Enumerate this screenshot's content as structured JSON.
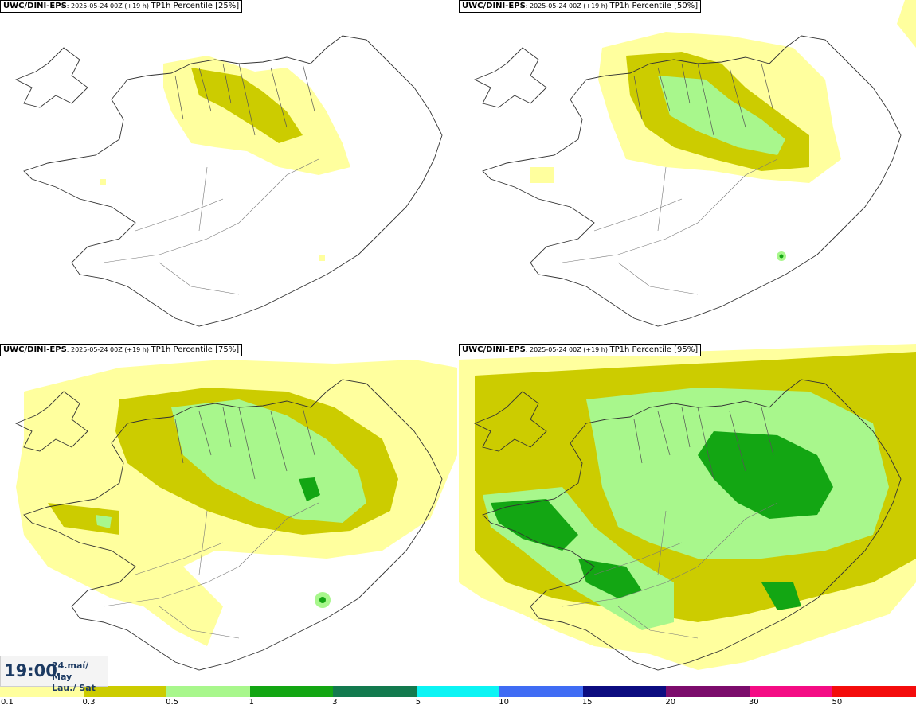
{
  "panels": [
    {
      "model": "UWC/DINI-EPS",
      "run": ": 2025-05-24 00Z (+19 h) ",
      "field": "TP1h Percentile [25%]"
    },
    {
      "model": "UWC/DINI-EPS",
      "run": ": 2025-05-24 00Z (+19 h) ",
      "field": "TP1h Percentile [50%]"
    },
    {
      "model": "UWC/DINI-EPS",
      "run": ": 2025-05-24 00Z (+19 h) ",
      "field": "TP1h Percentile [75%]"
    },
    {
      "model": "UWC/DINI-EPS",
      "run": ": 2025-05-24 00Z (+19 h) ",
      "field": "TP1h Percentile [95%]"
    }
  ],
  "valid_time": {
    "time": "19:00",
    "date": "24.maí/ May",
    "weekday": "Lau./ Sat"
  },
  "legend": {
    "colors": [
      "#ffff9e",
      "#cccc00",
      "#a8f78c",
      "#13a613",
      "#137a4e",
      "#0cf4f4",
      "#3f6cf4",
      "#0c0c80",
      "#7c0c6c",
      "#f40c84",
      "#f40c0c"
    ],
    "labels": [
      "0.1",
      "0.3",
      "0.5",
      "1",
      "3",
      "5",
      "10",
      "15",
      "20",
      "30",
      "50"
    ]
  }
}
